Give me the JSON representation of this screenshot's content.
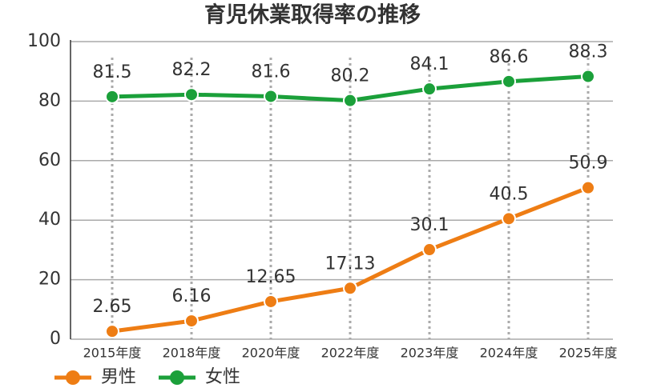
{
  "chart_data": {
    "type": "line",
    "title": "育児休業取得率の推移",
    "categories": [
      "2015年度",
      "2018年度",
      "2020年度",
      "2022年度",
      "2023年度",
      "2024年度",
      "2025年度"
    ],
    "series": [
      {
        "name": "男性",
        "color": "#ee7d14",
        "values": [
          2.65,
          6.16,
          12.65,
          17.13,
          30.1,
          40.5,
          50.9
        ]
      },
      {
        "name": "女性",
        "color": "#1ba03a",
        "values": [
          81.5,
          82.2,
          81.6,
          80.2,
          84.1,
          86.6,
          88.3
        ]
      }
    ],
    "ylim": [
      0,
      100
    ],
    "yticks": [
      0,
      20,
      40,
      60,
      80,
      100
    ],
    "grid": true,
    "legend": "bottom"
  }
}
